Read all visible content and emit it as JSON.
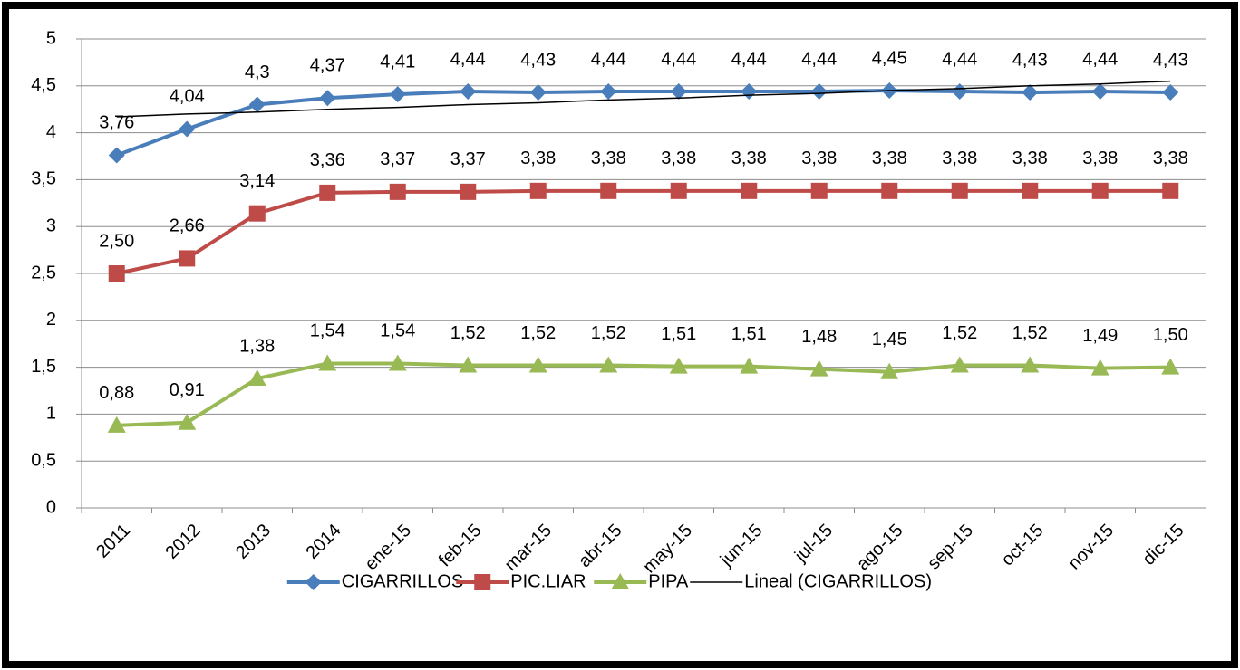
{
  "chart_data": {
    "type": "line",
    "categories": [
      "2011",
      "2012",
      "2013",
      "2014",
      "ene-15",
      "feb-15",
      "mar-15",
      "abr-15",
      "may-15",
      "jun-15",
      "jul-15",
      "ago-15",
      "sep-15",
      "oct-15",
      "nov-15",
      "dic-15"
    ],
    "series": [
      {
        "name": "CIGARRILLOS",
        "color": "#4a7ebb",
        "marker": "diamond",
        "values": [
          3.76,
          4.04,
          4.3,
          4.37,
          4.41,
          4.44,
          4.43,
          4.44,
          4.44,
          4.44,
          4.44,
          4.45,
          4.44,
          4.43,
          4.44,
          4.43
        ],
        "value_labels": [
          "3,76",
          "4,04",
          "4,3",
          "4,37",
          "4,41",
          "4,44",
          "4,43",
          "4,44",
          "4,44",
          "4,44",
          "4,44",
          "4,45",
          "4,44",
          "4,43",
          "4,44",
          "4,43"
        ]
      },
      {
        "name": "PIC.LIAR",
        "color": "#be4b48",
        "marker": "square",
        "values": [
          2.5,
          2.66,
          3.14,
          3.36,
          3.37,
          3.37,
          3.38,
          3.38,
          3.38,
          3.38,
          3.38,
          3.38,
          3.38,
          3.38,
          3.38,
          3.38
        ],
        "value_labels": [
          "2,50",
          "2,66",
          "3,14",
          "3,36",
          "3,37",
          "3,37",
          "3,38",
          "3,38",
          "3,38",
          "3,38",
          "3,38",
          "3,38",
          "3,38",
          "3,38",
          "3,38",
          "3,38"
        ]
      },
      {
        "name": "PIPA",
        "color": "#98b954",
        "marker": "triangle",
        "values": [
          0.88,
          0.91,
          1.38,
          1.54,
          1.54,
          1.52,
          1.52,
          1.52,
          1.51,
          1.51,
          1.48,
          1.45,
          1.52,
          1.52,
          1.49,
          1.5
        ],
        "value_labels": [
          "0,88",
          "0,91",
          "1,38",
          "1,54",
          "1,54",
          "1,52",
          "1,52",
          "1,52",
          "1,51",
          "1,51",
          "1,48",
          "1,45",
          "1,52",
          "1,52",
          "1,49",
          "1,50"
        ]
      },
      {
        "name": "Lineal (CIGARRILLOS)",
        "color": "#000000",
        "marker": "none",
        "values": [
          4.17,
          4.2,
          4.22,
          4.25,
          4.27,
          4.3,
          4.32,
          4.35,
          4.37,
          4.4,
          4.42,
          4.45,
          4.47,
          4.5,
          4.52,
          4.55
        ]
      }
    ],
    "ylim": [
      0,
      5
    ],
    "yticks": [
      0,
      {
        "value": 0.5,
        "label": "0,5"
      },
      1,
      {
        "value": 1.5,
        "label": "1,5"
      },
      2,
      {
        "value": 2.5,
        "label": "2,5"
      },
      3,
      {
        "value": 3.5,
        "label": "3,5"
      },
      4,
      {
        "value": 4.5,
        "label": "4,5"
      },
      5
    ],
    "grid": true,
    "legend": "bottom"
  }
}
